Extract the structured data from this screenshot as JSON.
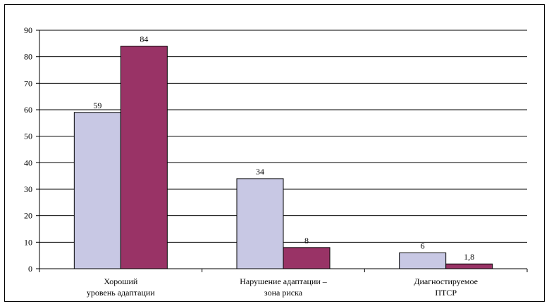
{
  "chart_data": {
    "type": "bar",
    "categories": [
      [
        "Хороший",
        "уровень адаптации"
      ],
      [
        "Нарушение адаптации –",
        "зона риска"
      ],
      [
        "Диагностируемое",
        "ПТСР"
      ]
    ],
    "series": [
      {
        "values": [
          59,
          34,
          6
        ],
        "data_labels": [
          "59",
          "34",
          "6"
        ],
        "color": "#c8c8e4"
      },
      {
        "values": [
          84,
          8,
          1.8
        ],
        "data_labels": [
          "84",
          "8",
          "1,8"
        ],
        "color": "#993366"
      }
    ],
    "ylim": [
      0,
      90
    ],
    "yticks": [
      "0",
      "10",
      "20",
      "30",
      "40",
      "50",
      "60",
      "70",
      "80",
      "90"
    ],
    "grid": true,
    "legend": "none"
  }
}
